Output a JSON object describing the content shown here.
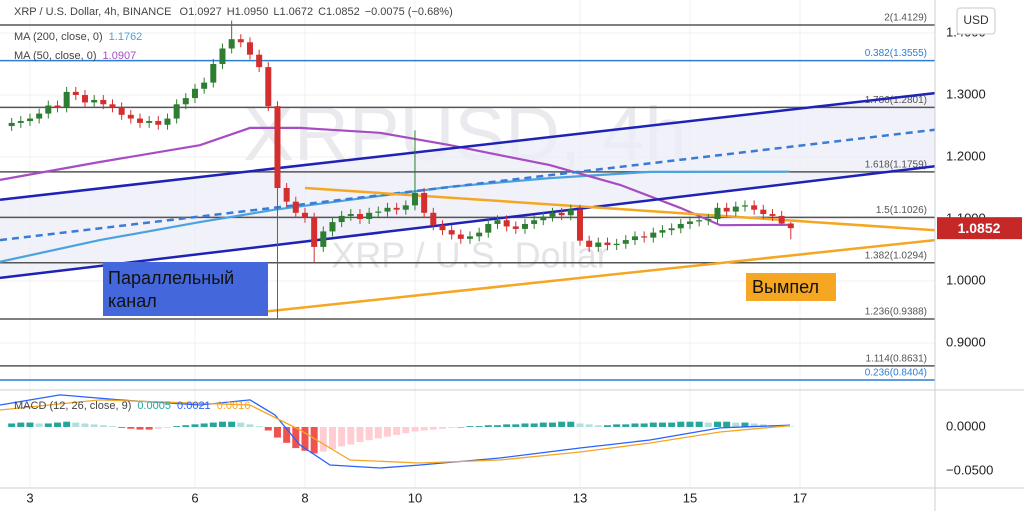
{
  "chart_data": [
    {
      "type": "candlestick",
      "title": "XRP / U.S. Dollar, 4h, BINANCE",
      "ohlc_text": [
        "O1.0927",
        "H1.0950",
        "L1.0672",
        "C1.0852",
        "−0.0075 (−0.68%)"
      ],
      "watermark": [
        "XRPUSD, 4h",
        "XRP / U.S. Dollar"
      ],
      "unit": "USD",
      "xlim": [
        2.455,
        19.455
      ],
      "ylim": [
        0.8242,
        1.4532
      ],
      "yticks": [
        {
          "value": 1.4,
          "label": "1.4000"
        },
        {
          "value": 1.3,
          "label": "1.3000"
        },
        {
          "value": 1.2,
          "label": "1.2000"
        },
        {
          "value": 1.1,
          "label": "1.1000"
        },
        {
          "value": 1.0,
          "label": "1.0000"
        },
        {
          "value": 0.9,
          "label": "0.9000"
        }
      ],
      "grid": true,
      "up_color": "#2e7d32",
      "down_color": "#d32f2f",
      "x": [
        2.667,
        2.833,
        3,
        3.167,
        3.333,
        3.5,
        3.667,
        3.833,
        4,
        4.167,
        4.333,
        4.5,
        4.667,
        4.833,
        5,
        5.167,
        5.333,
        5.5,
        5.667,
        5.833,
        6,
        6.167,
        6.333,
        6.5,
        6.667,
        6.833,
        7,
        7.167,
        7.333,
        7.5,
        7.667,
        7.833,
        8,
        8.167,
        8.333,
        8.5,
        8.667,
        8.833,
        9,
        9.167,
        9.333,
        9.5,
        9.667,
        9.833,
        10,
        10.167,
        10.333,
        10.5,
        10.667,
        10.833,
        11,
        11.167,
        11.333,
        11.5,
        11.667,
        11.833,
        12,
        12.167,
        12.333,
        12.5,
        12.667,
        12.833,
        13,
        13.167,
        13.333,
        13.5,
        13.667,
        13.833,
        14,
        14.167,
        14.333,
        14.5,
        14.667,
        14.833,
        15,
        15.167,
        15.333,
        15.5,
        15.667,
        15.833,
        16,
        16.167,
        16.333,
        16.5,
        16.667,
        16.833
      ],
      "open": [
        1.25,
        1.255,
        1.258,
        1.262,
        1.27,
        1.283,
        1.28,
        1.305,
        1.3,
        1.288,
        1.292,
        1.285,
        1.28,
        1.268,
        1.262,
        1.255,
        1.258,
        1.252,
        1.262,
        1.285,
        1.295,
        1.31,
        1.32,
        1.35,
        1.375,
        1.39,
        1.385,
        1.365,
        1.345,
        1.282,
        1.15,
        1.128,
        1.11,
        1.102,
        1.055,
        1.08,
        1.095,
        1.105,
        1.108,
        1.1,
        1.11,
        1.112,
        1.118,
        1.115,
        1.122,
        1.142,
        1.11,
        1.09,
        1.082,
        1.075,
        1.068,
        1.072,
        1.078,
        1.092,
        1.098,
        1.088,
        1.084,
        1.092,
        1.098,
        1.104,
        1.11,
        1.106,
        1.115,
        1.065,
        1.055,
        1.062,
        1.058,
        1.06,
        1.066,
        1.072,
        1.07,
        1.078,
        1.082,
        1.085,
        1.092,
        1.096,
        1.098,
        1.1,
        1.118,
        1.112,
        1.12,
        1.122,
        1.115,
        1.108,
        1.105,
        1.0927
      ],
      "high": [
        1.263,
        1.266,
        1.27,
        1.278,
        1.291,
        1.291,
        1.313,
        1.313,
        1.308,
        1.3,
        1.3,
        1.293,
        1.288,
        1.276,
        1.27,
        1.266,
        1.266,
        1.27,
        1.293,
        1.303,
        1.318,
        1.328,
        1.358,
        1.383,
        1.42,
        1.398,
        1.393,
        1.373,
        1.353,
        1.29,
        1.158,
        1.136,
        1.118,
        1.11,
        1.088,
        1.103,
        1.113,
        1.116,
        1.116,
        1.118,
        1.12,
        1.126,
        1.126,
        1.13,
        1.243,
        1.15,
        1.118,
        1.098,
        1.09,
        1.083,
        1.08,
        1.086,
        1.1,
        1.106,
        1.106,
        1.096,
        1.1,
        1.106,
        1.112,
        1.118,
        1.118,
        1.123,
        1.123,
        1.073,
        1.07,
        1.07,
        1.068,
        1.074,
        1.08,
        1.08,
        1.086,
        1.09,
        1.093,
        1.1,
        1.104,
        1.106,
        1.108,
        1.126,
        1.126,
        1.128,
        1.13,
        1.13,
        1.123,
        1.116,
        1.113,
        1.095
      ],
      "low": [
        1.242,
        1.247,
        1.25,
        1.254,
        1.262,
        1.272,
        1.272,
        1.292,
        1.28,
        1.28,
        1.277,
        1.272,
        1.26,
        1.254,
        1.247,
        1.247,
        1.244,
        1.244,
        1.254,
        1.277,
        1.287,
        1.302,
        1.312,
        1.342,
        1.367,
        1.377,
        1.357,
        1.337,
        1.274,
        0.939,
        1.12,
        1.102,
        1.094,
        1.03,
        1.047,
        1.072,
        1.087,
        1.097,
        1.092,
        1.092,
        1.102,
        1.104,
        1.107,
        1.107,
        1.114,
        1.102,
        1.082,
        1.074,
        1.067,
        1.06,
        1.06,
        1.064,
        1.07,
        1.084,
        1.08,
        1.076,
        1.076,
        1.084,
        1.09,
        1.096,
        1.098,
        1.098,
        1.057,
        1.047,
        1.047,
        1.05,
        1.05,
        1.052,
        1.058,
        1.062,
        1.062,
        1.07,
        1.074,
        1.077,
        1.084,
        1.088,
        1.09,
        1.092,
        1.104,
        1.104,
        1.112,
        1.107,
        1.1,
        1.097,
        1.09,
        1.0672
      ],
      "close": [
        1.255,
        1.258,
        1.262,
        1.27,
        1.283,
        1.28,
        1.305,
        1.3,
        1.288,
        1.292,
        1.285,
        1.28,
        1.268,
        1.262,
        1.255,
        1.258,
        1.252,
        1.262,
        1.285,
        1.295,
        1.31,
        1.32,
        1.35,
        1.375,
        1.39,
        1.385,
        1.365,
        1.345,
        1.282,
        1.15,
        1.128,
        1.11,
        1.102,
        1.055,
        1.08,
        1.095,
        1.105,
        1.108,
        1.1,
        1.11,
        1.112,
        1.118,
        1.115,
        1.122,
        1.142,
        1.11,
        1.09,
        1.082,
        1.075,
        1.068,
        1.072,
        1.078,
        1.092,
        1.098,
        1.088,
        1.084,
        1.092,
        1.098,
        1.104,
        1.11,
        1.106,
        1.115,
        1.065,
        1.055,
        1.062,
        1.058,
        1.06,
        1.066,
        1.072,
        1.07,
        1.078,
        1.082,
        1.085,
        1.092,
        1.096,
        1.098,
        1.1,
        1.118,
        1.112,
        1.12,
        1.122,
        1.115,
        1.108,
        1.105,
        1.0927,
        1.0852
      ],
      "lines": [
        {
          "name": "MA (200, close, 0)",
          "color": "#4aa3df",
          "x": [
            2.455,
            4.27,
            6.09,
            7.45,
            8.82,
            10.64,
            12.45,
            14.27,
            16.818
          ],
          "values": [
            1.031,
            1.066,
            1.095,
            1.115,
            1.131,
            1.152,
            1.166,
            1.176,
            1.1762
          ]
        },
        {
          "name": "MA (50, close, 0)",
          "color": "#a64dc4",
          "x": [
            2.455,
            4.27,
            6.09,
            7.0,
            7.91,
            9.36,
            10.64,
            12.45,
            13.73,
            14.82,
            15.55,
            16.818
          ],
          "values": [
            1.163,
            1.192,
            1.219,
            1.247,
            1.247,
            1.239,
            1.219,
            1.187,
            1.155,
            1.118,
            1.09,
            1.0907
          ]
        }
      ],
      "channel_fill": "#ececf8",
      "trendlines": [
        {
          "color": "#1f23b5",
          "x": [
            2.455,
            19.455
          ],
          "values": [
            1.131,
            1.303
          ]
        },
        {
          "color": "#1f23b5",
          "x": [
            2.455,
            19.455
          ],
          "values": [
            1.005,
            1.185
          ]
        },
        {
          "color": "#3a7bd5",
          "dashed": true,
          "x": [
            2.455,
            19.455
          ],
          "values": [
            1.066,
            1.244
          ]
        },
        {
          "color": "#f5a623",
          "x": [
            8.0,
            19.455
          ],
          "values": [
            1.15,
            1.082
          ]
        },
        {
          "color": "#f5a623",
          "x": [
            7.0,
            19.455
          ],
          "values": [
            0.948,
            1.066
          ]
        }
      ],
      "levels": [
        {
          "value": 1.4129,
          "label": "2(1.4129)",
          "color": "#555555"
        },
        {
          "value": 1.3555,
          "label": "0.382(1.3555)",
          "color": "#2a7fd4"
        },
        {
          "value": 1.2801,
          "label": "1.786(1.2801)",
          "color": "#555555"
        },
        {
          "value": 1.1759,
          "label": "1.618(1.1759)",
          "color": "#555555"
        },
        {
          "value": 1.1026,
          "label": "1.5(1.1026)",
          "color": "#555555"
        },
        {
          "value": 1.0294,
          "label": "1.382(1.0294)",
          "color": "#555555"
        },
        {
          "value": 0.9388,
          "label": "1.236(0.9388)",
          "color": "#555555"
        },
        {
          "value": 0.8631,
          "label": "1.114(0.8631)",
          "color": "#555555"
        },
        {
          "value": 0.8404,
          "label": "0.236(0.8404)",
          "color": "#2a7fd4"
        }
      ],
      "price_label_color": "#c62828",
      "annotations": [
        {
          "lines": [
            "Параллельный",
            "канал"
          ],
          "color": "#4468dc"
        },
        {
          "lines": [
            "Вымпел"
          ],
          "color": "#f5a623"
        }
      ]
    },
    {
      "type": "macd",
      "title": "MACD (12, 26, close, 9)",
      "xlim": [
        2.455,
        19.455
      ],
      "xticks": [
        3,
        6,
        8,
        10,
        13,
        15,
        17
      ],
      "ylim": [
        -0.0693,
        0.042
      ],
      "yticks": [
        {
          "value": 0,
          "label": "0.0000"
        },
        {
          "value": -0.05,
          "label": "−0.0500"
        }
      ],
      "histogram": {
        "color_up": "#26a69a",
        "color_up_fading": "#b2dfdb",
        "color_down": "#ef5350",
        "color_down_fading": "#ffcdd2",
        "values": [
          0.004,
          0.005,
          0.005,
          0.004,
          0.004,
          0.005,
          0.006,
          0.005,
          0.004,
          0.003,
          0.002,
          0.001,
          -0.001,
          -0.002,
          -0.003,
          -0.003,
          -0.002,
          -0.001,
          0.001,
          0.002,
          0.003,
          0.004,
          0.005,
          0.006,
          0.006,
          0.005,
          0.003,
          0.001,
          -0.004,
          -0.012,
          -0.018,
          -0.024,
          -0.027,
          -0.03,
          -0.028,
          -0.025,
          -0.022,
          -0.02,
          -0.017,
          -0.015,
          -0.013,
          -0.011,
          -0.009,
          -0.007,
          -0.005,
          -0.004,
          -0.003,
          -0.002,
          -0.001,
          0.0,
          0.001,
          0.001,
          0.002,
          0.002,
          0.003,
          0.003,
          0.004,
          0.004,
          0.005,
          0.005,
          0.006,
          0.006,
          0.004,
          0.003,
          0.002,
          0.002,
          0.003,
          0.003,
          0.004,
          0.004,
          0.005,
          0.005,
          0.005,
          0.006,
          0.006,
          0.006,
          0.005,
          0.006,
          0.006,
          0.005,
          0.005,
          0.004,
          0.003,
          0.002,
          0.001,
          0.0005
        ]
      },
      "series": [
        {
          "color": "#2962ff",
          "x": [
            2.455,
            3.545,
            4.636,
            6.091,
            7.0,
            7.455,
            7.909,
            8.455,
            9.364,
            10.091,
            11.545,
            13.0,
            14.273,
            15.545,
            16.818
          ],
          "values": [
            0.025,
            0.0364,
            0.0307,
            0.025,
            0.0307,
            0.0136,
            -0.0205,
            -0.0432,
            -0.0466,
            -0.0432,
            -0.0352,
            -0.0239,
            -0.0148,
            -0.0011,
            0.0021
          ]
        },
        {
          "color": "#f5a623",
          "x": [
            2.455,
            4.273,
            7.0,
            7.909,
            8.818,
            10.091,
            11.545,
            13.0,
            14.273,
            15.545,
            16.818
          ],
          "values": [
            0.0193,
            0.0307,
            0.025,
            -0.0034,
            -0.0375,
            -0.0409,
            -0.0375,
            -0.0284,
            -0.0182,
            -0.0057,
            0.0016
          ]
        }
      ]
    }
  ]
}
